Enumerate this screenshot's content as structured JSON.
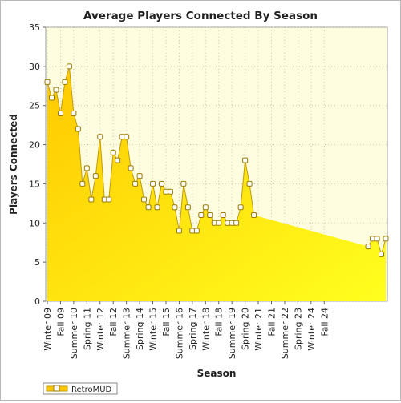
{
  "colors": {
    "plot_bg": "#fffde0",
    "grid": "#c8c8b4",
    "area_light": "#ffff1e",
    "area_dark": "#ffc800",
    "line": "#c09a10",
    "marker_fill": "#ffffff",
    "marker_stroke": "#9a7a00"
  },
  "chart_data": {
    "type": "area",
    "title": "Average Players Connected By Season",
    "xlabel": "Season",
    "ylabel": "Players Connected",
    "ylim": [
      0,
      35
    ],
    "yticks": [
      0,
      5,
      10,
      15,
      20,
      25,
      30,
      35
    ],
    "grid": true,
    "legend_position": "bottom-left",
    "x_tick_labels": [
      "Winter 09",
      "Fall 09",
      "Summer 10",
      "Spring 11",
      "Winter 12",
      "Fall 12",
      "Summer 13",
      "Spring 14",
      "Winter 15",
      "Fall 15",
      "Summer 16",
      "Spring 17",
      "Winter 18",
      "Fall 18",
      "Summer 19",
      "Spring 20",
      "Winter 21",
      "Fall 21",
      "Summer 22",
      "Spring 23",
      "Winter 24",
      "Fall 24"
    ],
    "series": [
      {
        "name": "RetroMUD",
        "values": [
          28,
          26,
          27,
          24,
          28,
          30,
          24,
          22,
          15,
          17,
          13,
          16,
          21,
          13,
          13,
          19,
          18,
          21,
          21,
          17,
          15,
          16,
          13,
          12,
          15,
          12,
          15,
          14,
          14,
          12,
          9,
          15,
          12,
          9,
          9,
          11,
          12,
          11,
          10,
          10,
          11,
          10,
          10,
          10,
          12,
          18,
          15,
          11,
          null,
          null,
          null,
          null,
          null,
          null,
          null,
          null,
          null,
          null,
          null,
          null,
          null,
          null,
          null,
          null,
          null,
          null,
          null,
          null,
          null,
          null,
          null,
          null,
          null,
          7,
          8,
          8,
          6,
          8
        ]
      }
    ]
  },
  "legend": {
    "items": [
      {
        "label": "RetroMUD"
      }
    ]
  }
}
